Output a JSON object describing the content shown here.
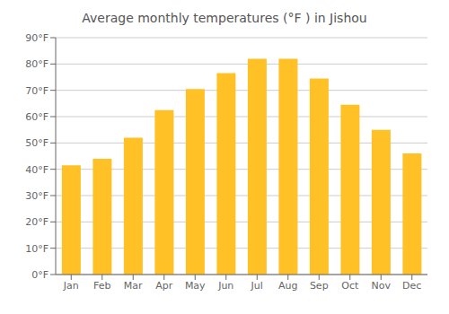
{
  "chart_data": {
    "type": "bar",
    "title": "Average monthly temperatures (°F ) in Jishou",
    "categories": [
      "Jan",
      "Feb",
      "Mar",
      "Apr",
      "May",
      "Jun",
      "Jul",
      "Aug",
      "Sep",
      "Oct",
      "Nov",
      "Dec"
    ],
    "values": [
      41.5,
      44.0,
      52.0,
      62.5,
      70.5,
      76.5,
      82.0,
      82.0,
      74.5,
      64.5,
      55.0,
      46.0
    ],
    "color": "#FFC125",
    "ylim": [
      0,
      90
    ],
    "yticks": [
      {
        "value": 0,
        "label": "0°F"
      },
      {
        "value": 10,
        "label": "10°F"
      },
      {
        "value": 20,
        "label": "20°F"
      },
      {
        "value": 30,
        "label": "30°F"
      },
      {
        "value": 40,
        "label": "40°F"
      },
      {
        "value": 50,
        "label": "50°F"
      },
      {
        "value": 60,
        "label": "60°F"
      },
      {
        "value": 70,
        "label": "70°F"
      },
      {
        "value": 80,
        "label": "80°F"
      },
      {
        "value": 90,
        "label": "90°F"
      }
    ],
    "grid": true
  }
}
